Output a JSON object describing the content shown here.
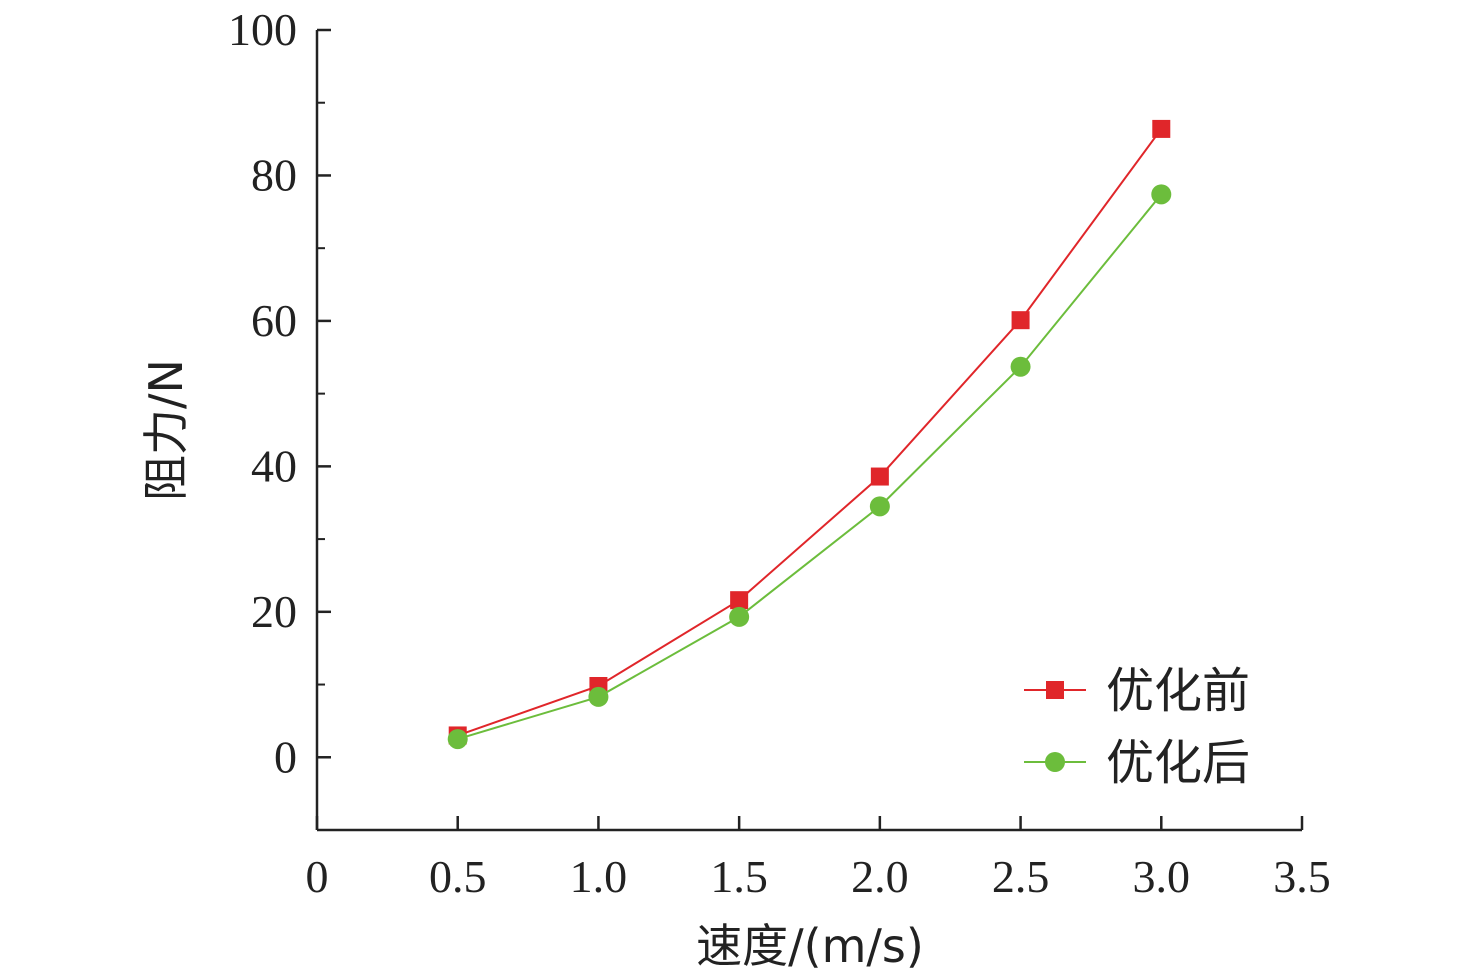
{
  "chart_data": {
    "type": "line",
    "xlabel": "速度/(m/s)",
    "ylabel": "阻力/N",
    "xlim": [
      0,
      3.5
    ],
    "ylim": [
      -10,
      100
    ],
    "xticks": [
      "0",
      "0.5",
      "1.0",
      "1.5",
      "2.0",
      "2.5",
      "3.0",
      "3.5"
    ],
    "yticks": [
      "0",
      "20",
      "40",
      "60",
      "80",
      "100"
    ],
    "x": [
      0.5,
      1.0,
      1.5,
      2.0,
      2.5,
      3.0
    ],
    "grid": false,
    "legend_position": "bottom-right",
    "series": [
      {
        "name": "优化前",
        "marker": "square",
        "color": "#e0262a",
        "values": [
          3.0,
          9.8,
          21.6,
          38.6,
          60.1,
          86.4
        ]
      },
      {
        "name": "优化后",
        "marker": "circle",
        "color": "#6cbd3c",
        "values": [
          2.5,
          8.3,
          19.3,
          34.5,
          53.7,
          77.4
        ]
      }
    ]
  }
}
